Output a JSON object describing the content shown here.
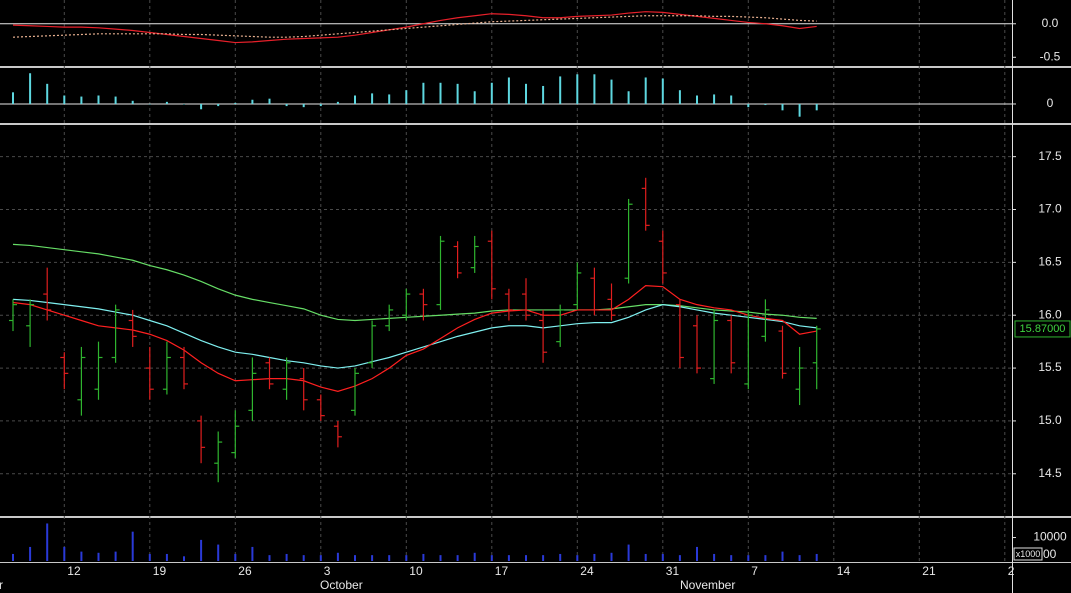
{
  "chart_data": [
    {
      "type": "line",
      "ylim": [
        -0.63,
        0.28
      ],
      "yticks": [
        {
          "value": 0,
          "label": "0.0"
        },
        {
          "value": -0.5,
          "label": "-0.5"
        }
      ],
      "series": [
        {
          "color": "#e8202a",
          "values": [
            -0.02,
            -0.03,
            -0.04,
            -0.05,
            -0.05,
            -0.06,
            -0.08,
            -0.1,
            -0.13,
            -0.16,
            -0.19,
            -0.22,
            -0.25,
            -0.28,
            -0.27,
            -0.25,
            -0.23,
            -0.22,
            -0.21,
            -0.2,
            -0.17,
            -0.13,
            -0.09,
            -0.05,
            0.0,
            0.05,
            0.09,
            0.12,
            0.15,
            0.14,
            0.12,
            0.09,
            0.09,
            0.11,
            0.12,
            0.13,
            0.16,
            0.18,
            0.17,
            0.14,
            0.11,
            0.08,
            0.05,
            0.02,
            0.0,
            -0.03,
            -0.07,
            -0.04,
            null,
            null,
            null,
            null,
            null,
            null,
            null,
            null,
            null,
            null,
            null
          ]
        },
        {
          "color": "#e8b090",
          "dash": true,
          "values": [
            -0.2,
            -0.19,
            -0.18,
            -0.17,
            -0.16,
            -0.15,
            -0.15,
            -0.15,
            -0.15,
            -0.15,
            -0.16,
            -0.16,
            -0.17,
            -0.18,
            -0.19,
            -0.2,
            -0.2,
            -0.19,
            -0.17,
            -0.15,
            -0.13,
            -0.11,
            -0.09,
            -0.07,
            -0.05,
            -0.03,
            -0.01,
            0.01,
            0.03,
            0.04,
            0.05,
            0.06,
            0.07,
            0.08,
            0.09,
            0.1,
            0.11,
            0.12,
            0.12,
            0.12,
            0.12,
            0.11,
            0.11,
            0.1,
            0.09,
            0.07,
            0.05,
            0.04,
            null,
            null,
            null,
            null,
            null,
            null,
            null,
            null,
            null,
            null,
            null
          ]
        }
      ]
    },
    {
      "type": "bar",
      "ylim": [
        -0.17,
        0.33
      ],
      "yticks": [
        0
      ],
      "color": "#5ed8e0",
      "values": [
        0.11,
        0.29,
        0.19,
        0.08,
        0.07,
        0.08,
        0.07,
        0.03,
        0.0,
        0.02,
        0.0,
        -0.05,
        -0.02,
        0.01,
        0.04,
        0.05,
        -0.02,
        -0.03,
        -0.02,
        0.02,
        0.08,
        0.1,
        0.09,
        0.13,
        0.2,
        0.2,
        0.19,
        0.12,
        0.2,
        0.25,
        0.19,
        0.17,
        0.26,
        0.28,
        0.28,
        0.23,
        0.12,
        0.25,
        0.24,
        0.13,
        0.08,
        0.09,
        0.08,
        -0.03,
        -0.01,
        -0.06,
        -0.12,
        -0.06,
        null,
        null,
        null,
        null,
        null,
        null,
        null,
        null,
        null,
        null,
        null
      ]
    },
    {
      "type": "ohlc",
      "ylim": [
        14.11,
        17.79
      ],
      "yticks": [
        14.5,
        {
          "value": 15,
          "label": "15.0"
        },
        15.5,
        {
          "value": 16,
          "label": "16.0"
        },
        16.5,
        {
          "value": 17,
          "label": "17.0"
        },
        17.5
      ],
      "categories": [
        null,
        null,
        null,
        "12",
        null,
        null,
        null,
        null,
        "19",
        null,
        null,
        null,
        null,
        "26",
        null,
        null,
        null,
        null,
        "3",
        null,
        null,
        null,
        null,
        "10",
        null,
        null,
        null,
        null,
        "17",
        null,
        null,
        null,
        null,
        "24",
        null,
        null,
        null,
        null,
        "31",
        null,
        null,
        null,
        null,
        "7",
        null,
        null,
        null,
        null,
        "14",
        null,
        null,
        null,
        null,
        "21",
        null,
        null,
        null,
        null,
        "2"
      ],
      "month_labels": [
        "r",
        "October",
        "November"
      ],
      "up_color": "#2fb52f",
      "down_color": "#e01e1e",
      "open": [
        15.95,
        15.9,
        16.2,
        15.6,
        15.2,
        15.3,
        15.6,
        15.95,
        15.5,
        15.3,
        15.6,
        15.0,
        14.6,
        14.7,
        15.1,
        15.55,
        15.3,
        15.4,
        15.2,
        14.95,
        15.1,
        15.55,
        15.9,
        16.0,
        16.2,
        16.1,
        16.65,
        16.45,
        16.7,
        16.2,
        16.2,
        15.95,
        15.75,
        16.1,
        16.35,
        16.15,
        16.35,
        17.2,
        16.7,
        16.1,
        15.9,
        15.4,
        15.95,
        15.35,
        15.8,
        15.85,
        15.3,
        15.55,
        null,
        null,
        null,
        null,
        null,
        null,
        null,
        null,
        null,
        null,
        null
      ],
      "high": [
        16.15,
        16.15,
        16.45,
        15.65,
        15.7,
        15.75,
        16.1,
        16.05,
        15.7,
        15.75,
        15.7,
        15.05,
        14.9,
        15.1,
        15.6,
        15.6,
        15.6,
        15.5,
        15.25,
        15.0,
        15.5,
        15.95,
        16.1,
        16.25,
        16.25,
        16.75,
        16.7,
        16.75,
        16.8,
        16.25,
        16.35,
        16.05,
        16.1,
        16.5,
        16.45,
        16.3,
        17.1,
        17.3,
        16.8,
        16.15,
        16.0,
        16.05,
        16.0,
        16.05,
        16.15,
        15.9,
        15.7,
        15.9,
        null,
        null,
        null,
        null,
        null,
        null,
        null,
        null,
        null,
        null,
        null
      ],
      "low": [
        15.85,
        15.7,
        15.95,
        15.3,
        15.05,
        15.2,
        15.55,
        15.7,
        15.2,
        15.25,
        15.3,
        14.6,
        14.42,
        14.65,
        15.0,
        15.3,
        15.2,
        15.1,
        15.0,
        14.75,
        15.05,
        15.5,
        15.85,
        15.95,
        15.95,
        16.05,
        16.35,
        16.4,
        16.15,
        15.95,
        15.95,
        15.55,
        15.7,
        16.05,
        16.0,
        15.95,
        16.3,
        16.8,
        16.3,
        15.5,
        15.45,
        15.35,
        15.45,
        15.3,
        15.75,
        15.4,
        15.15,
        15.3,
        null,
        null,
        null,
        null,
        null,
        null,
        null,
        null,
        null,
        null,
        null
      ],
      "close": [
        16.1,
        16.1,
        16.05,
        15.45,
        15.6,
        15.6,
        16.05,
        15.8,
        15.3,
        15.6,
        15.35,
        14.75,
        14.8,
        14.95,
        15.45,
        15.35,
        15.55,
        15.2,
        15.05,
        14.85,
        15.45,
        15.9,
        16.05,
        16.2,
        16.1,
        16.7,
        16.4,
        16.65,
        16.25,
        16.05,
        16.0,
        15.65,
        16.05,
        16.4,
        16.05,
        16.0,
        17.05,
        16.85,
        16.4,
        15.6,
        15.5,
        15.95,
        15.55,
        16.0,
        16.05,
        15.45,
        15.5,
        15.87,
        null,
        null,
        null,
        null,
        null,
        null,
        null,
        null,
        null,
        null,
        null
      ],
      "series": [
        {
          "color": "#66dd66",
          "values": [
            16.67,
            16.66,
            16.64,
            16.62,
            16.6,
            16.58,
            16.55,
            16.52,
            16.47,
            16.43,
            16.38,
            16.32,
            16.25,
            16.19,
            16.15,
            16.12,
            16.09,
            16.06,
            16.0,
            15.96,
            15.95,
            15.96,
            15.97,
            15.98,
            15.99,
            16.0,
            16.01,
            16.02,
            16.04,
            16.05,
            16.05,
            16.05,
            16.05,
            16.05,
            16.05,
            16.06,
            16.08,
            16.1,
            16.1,
            16.09,
            16.07,
            16.05,
            16.04,
            16.03,
            16.01,
            16.0,
            15.98,
            15.97,
            null,
            null,
            null,
            null,
            null,
            null,
            null,
            null,
            null,
            null,
            null
          ]
        },
        {
          "color": "#7ff0f0",
          "values": [
            16.15,
            16.14,
            16.12,
            16.1,
            16.08,
            16.06,
            16.03,
            16.0,
            15.95,
            15.9,
            15.83,
            15.76,
            15.7,
            15.65,
            15.63,
            15.6,
            15.57,
            15.55,
            15.52,
            15.5,
            15.52,
            15.56,
            15.6,
            15.65,
            15.7,
            15.75,
            15.8,
            15.84,
            15.88,
            15.9,
            15.9,
            15.88,
            15.9,
            15.92,
            15.93,
            15.93,
            15.98,
            16.05,
            16.1,
            16.08,
            16.05,
            16.02,
            16.0,
            15.98,
            15.96,
            15.94,
            15.9,
            15.88,
            null,
            null,
            null,
            null,
            null,
            null,
            null,
            null,
            null,
            null,
            null
          ]
        },
        {
          "color": "#ff2020",
          "values": [
            16.12,
            16.1,
            16.05,
            16.0,
            15.95,
            15.9,
            15.88,
            15.86,
            15.82,
            15.76,
            15.67,
            15.55,
            15.45,
            15.38,
            15.39,
            15.4,
            15.4,
            15.38,
            15.32,
            15.28,
            15.33,
            15.4,
            15.5,
            15.62,
            15.68,
            15.78,
            15.88,
            15.96,
            16.02,
            16.04,
            16.05,
            16.0,
            16.0,
            16.05,
            16.05,
            16.05,
            16.15,
            16.28,
            16.27,
            16.15,
            16.1,
            16.07,
            16.05,
            16.0,
            15.97,
            15.95,
            15.82,
            15.85,
            null,
            null,
            null,
            null,
            null,
            null,
            null,
            null,
            null,
            null,
            null
          ]
        }
      ],
      "last_price": {
        "value": 15.87,
        "label": "15.87000"
      }
    },
    {
      "type": "bar",
      "ylim": [
        0,
        17900
      ],
      "yticks": [
        10000
      ],
      "color": "#2a3ad8",
      "unit_label": "x1000",
      "partial_label": "00",
      "values": [
        3000,
        6000,
        16000,
        6000,
        4000,
        3500,
        4000,
        12500,
        3000,
        3000,
        2000,
        9000,
        7000,
        3000,
        6000,
        2500,
        3000,
        2500,
        2500,
        3500,
        2500,
        2500,
        2500,
        2500,
        3000,
        2500,
        2500,
        3500,
        2500,
        2500,
        2500,
        2500,
        3000,
        2500,
        3000,
        3500,
        7000,
        3000,
        3000,
        2500,
        6000,
        3000,
        2500,
        2500,
        2500,
        4000,
        2500,
        3000,
        null,
        null,
        null,
        null,
        null,
        null,
        null,
        null,
        null,
        null,
        null
      ]
    }
  ]
}
